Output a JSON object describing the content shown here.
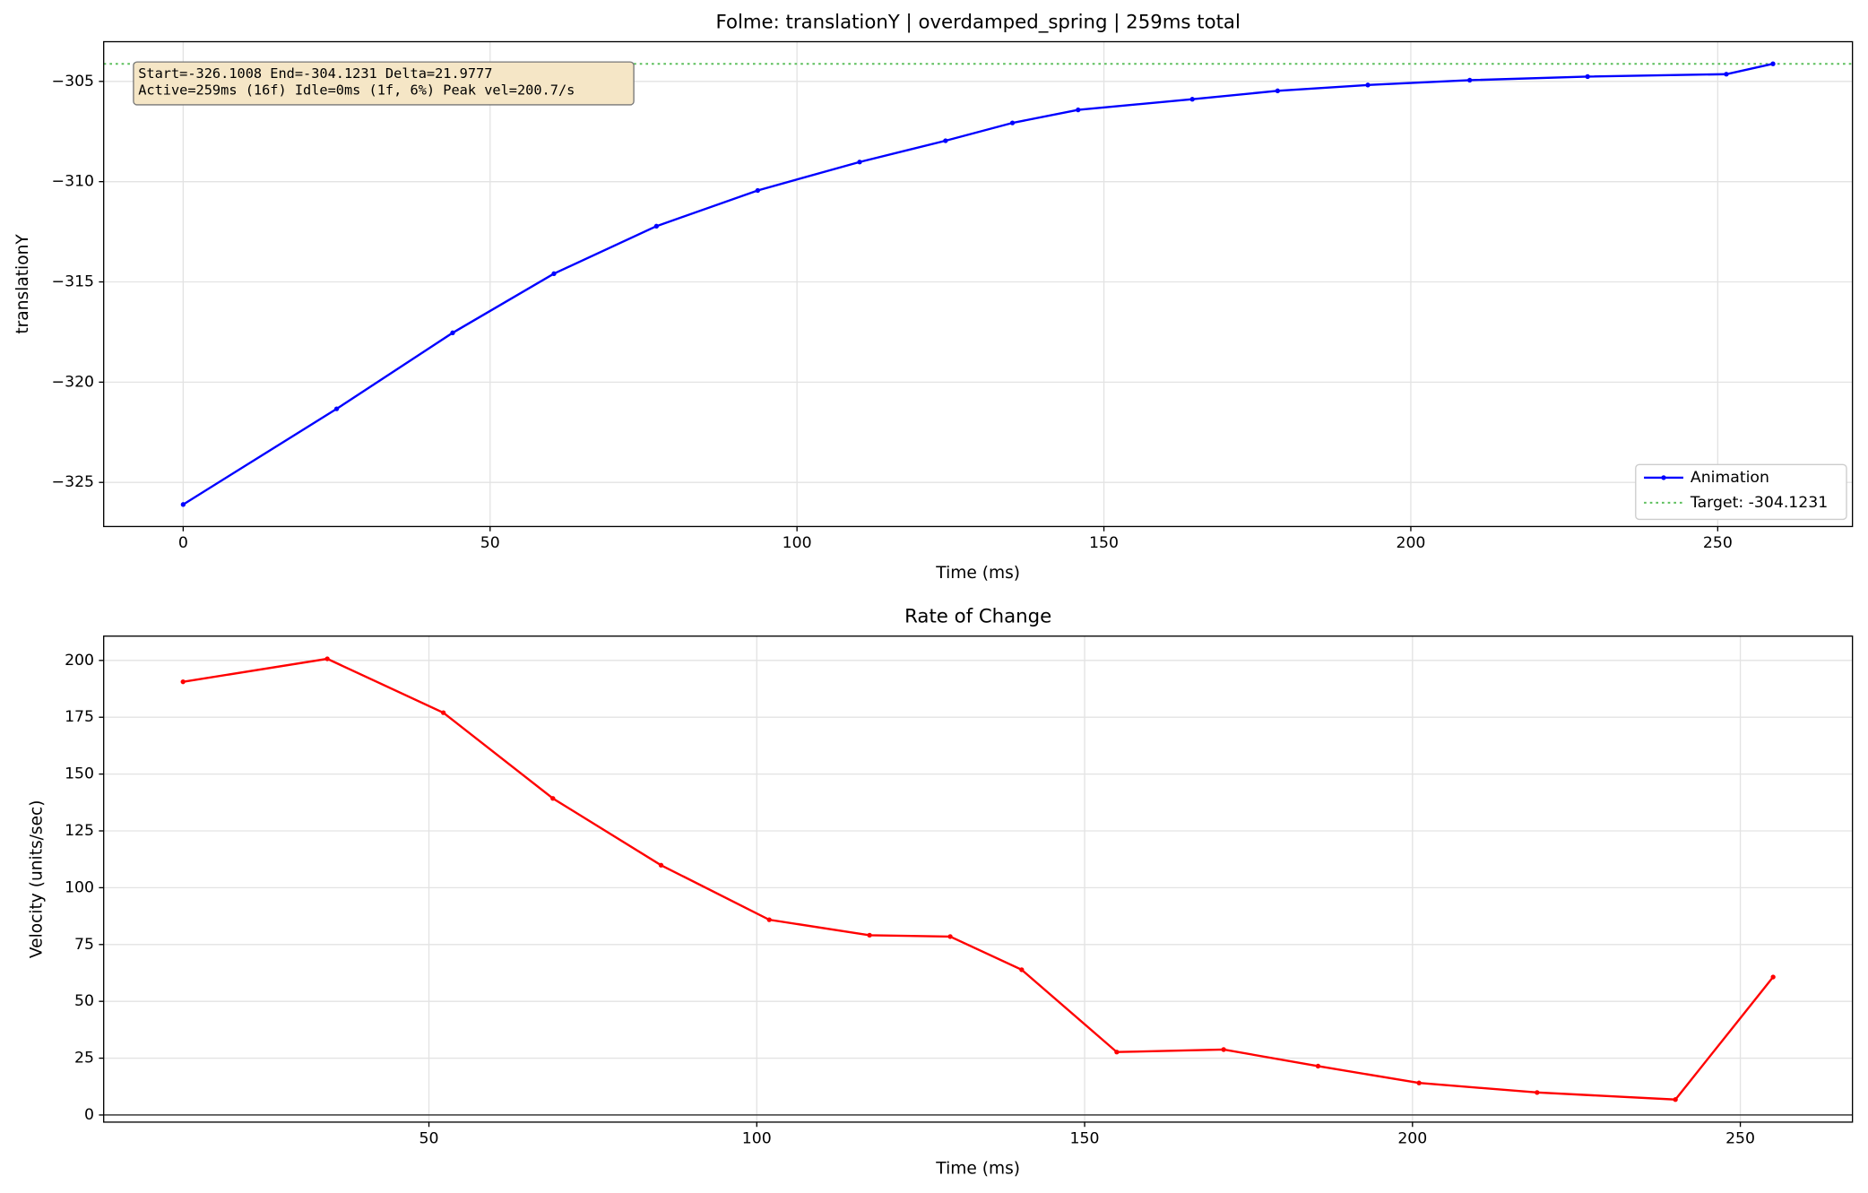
{
  "chart_data": [
    {
      "type": "line",
      "title": "Folme: translationY | overdamped_spring | 259ms total",
      "x_label": "Time (ms)",
      "y_label": "translationY",
      "xlim": [
        -12.95,
        271.95
      ],
      "ylim": [
        -327.2,
        -303.02
      ],
      "xticks": [
        0,
        50,
        100,
        150,
        200,
        250
      ],
      "yticks": [
        {
          "value": -325,
          "label": "−325"
        },
        {
          "value": -320,
          "label": "−320"
        },
        {
          "value": -315,
          "label": "−315"
        },
        {
          "value": -310,
          "label": "−310"
        },
        {
          "value": -305,
          "label": "−305"
        }
      ],
      "grid": true,
      "legend": "lower right",
      "annotation": [
        "Start=-326.1008  End=-304.1231  Delta=21.9777",
        "Active=259ms (16f)  Idle=0ms (1f, 6%)  Peak vel=200.7/s"
      ],
      "target": -304.1231,
      "target_label": "Target: -304.1231",
      "target_color": "#5cbf5c",
      "series": [
        {
          "name": "Animation",
          "color": "#0000ff",
          "x": [
            0,
            25.0,
            43.9,
            60.4,
            77.1,
            93.6,
            110.2,
            124.2,
            135.1,
            145.8,
            164.4,
            178.3,
            193.0,
            209.6,
            228.8,
            251.4,
            259
          ],
          "values": [
            -326.1008,
            -321.33,
            -317.54,
            -314.59,
            -312.22,
            -310.44,
            -309.02,
            -307.96,
            -307.07,
            -306.42,
            -305.89,
            -305.47,
            -305.18,
            -304.94,
            -304.76,
            -304.64,
            -304.1231
          ]
        }
      ]
    },
    {
      "type": "line",
      "title": "Rate of Change",
      "x_label": "Time (ms)",
      "y_label": "Velocity (units/sec)",
      "xlim": [
        0.4,
        267.1
      ],
      "ylim": [
        -3.14,
        210.7
      ],
      "xticks": [
        50,
        100,
        150,
        200,
        250
      ],
      "yticks": [
        0,
        25,
        50,
        75,
        100,
        125,
        150,
        175,
        200
      ],
      "grid": true,
      "hline": 0,
      "series": [
        {
          "color": "#ff0000",
          "x": [
            12.5,
            34.5,
            52.2,
            68.9,
            85.4,
            101.9,
            117.2,
            129.5,
            140.4,
            154.9,
            171.2,
            185.6,
            201.0,
            219.0,
            240.1,
            255.0
          ],
          "values": [
            190.6,
            200.7,
            177.0,
            139.3,
            109.9,
            85.9,
            79.1,
            78.5,
            63.9,
            27.7,
            28.8,
            21.5,
            14.1,
            9.9,
            6.8,
            60.7
          ]
        }
      ]
    }
  ]
}
